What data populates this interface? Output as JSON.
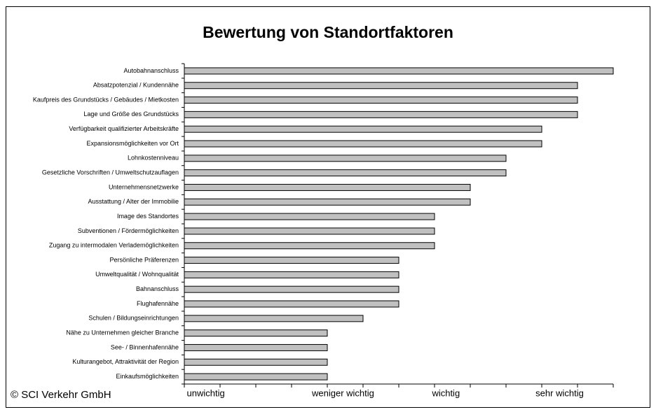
{
  "chart_data": {
    "type": "bar",
    "orientation": "horizontal",
    "title": "Bewertung von Standortfaktoren",
    "categories": [
      "Autobahnanschluss",
      "Absatzpotenzial / Kundennähe",
      "Kaufpreis des Grundstücks / Gebäudes / Mietkosten",
      "Lage und Größe des Grundstücks",
      "Verfügbarkeit qualifizierter Arbeitskräfte",
      "Expansionsmöglichkeiten vor Ort",
      "Lohnkostenniveau",
      "Gesetzliche Vorschriften / Umweltschutzauflagen",
      "Unternehmensnetzwerke",
      "Ausstattung / Alter der Immobilie",
      "Image des Standortes",
      "Subventionen / Fördermöglichkeiten",
      "Zugang zu intermodalen Verlademöglichkeiten",
      "Persönliche Präferenzen",
      "Umweltqualität / Wohnqualität",
      "Bahnanschluss",
      "Flughafennähe",
      "Schulen / Bildungseinrichtungen",
      "Nähe zu Unternehmen gleicher Branche",
      "See- / Binnenhafennähe",
      "Kulturangebot, Attraktivität der Region",
      "Einkaufsmöglichkeiten"
    ],
    "values": [
      12,
      11,
      11,
      11,
      10,
      10,
      9,
      9,
      8,
      8,
      7,
      7,
      7,
      6,
      6,
      6,
      6,
      5,
      4,
      4,
      4,
      4
    ],
    "color": "#c0c0c0",
    "xlim": [
      0,
      12
    ],
    "xticks": [
      0,
      1,
      2,
      3,
      4,
      5,
      6,
      7,
      8,
      9,
      10,
      11,
      12
    ],
    "scale_labels": [
      "unwichtig",
      "weniger wichtig",
      "wichtig",
      "sehr wichtig"
    ],
    "footer": "© SCI Verkehr GmbH"
  }
}
